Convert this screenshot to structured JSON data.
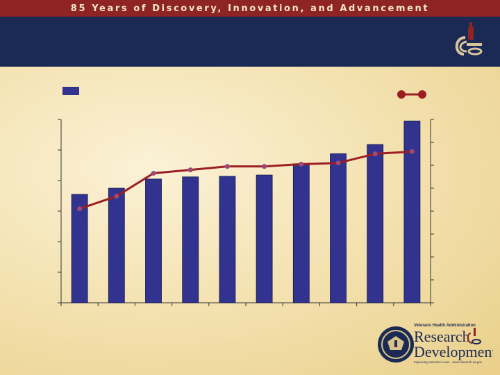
{
  "banner": {
    "title": "85 Years of Discovery, Innovation, and Advancement"
  },
  "colors": {
    "banner_bg": "#8e2424",
    "title_band": "#1b2a55",
    "bar": "#31338f",
    "line": "#9c1d22",
    "marker": "#9c4a78"
  },
  "icons": {
    "corner_logo": "microscope-logo-icon",
    "seal": "va-seal-icon"
  },
  "footer": {
    "org_line": "Veterans Health Administration",
    "brand_word_1": "Research",
    "brand_word_2": "Development",
    "tagline": "Improving Veterans' Lives · www.research.va.gov"
  },
  "chart_data": {
    "type": "bar",
    "title": "",
    "categories": [
      "",
      "",
      "",
      "",
      "",
      "",
      "",
      "",
      "",
      ""
    ],
    "series": [
      {
        "kind": "bar",
        "axis": "left",
        "values": [
          3.55,
          3.75,
          4.05,
          4.12,
          4.14,
          4.18,
          4.55,
          4.88,
          5.18,
          5.95
        ]
      },
      {
        "kind": "line",
        "axis": "right",
        "values": [
          4.1,
          4.65,
          5.65,
          5.8,
          5.95,
          5.95,
          6.05,
          6.1,
          6.5,
          6.6
        ]
      }
    ],
    "y_left": {
      "min": 0,
      "max": 6,
      "ticks": 6
    },
    "y_right": {
      "min": 0,
      "max": 8,
      "ticks": 8
    },
    "grid": false,
    "legend": "top"
  }
}
